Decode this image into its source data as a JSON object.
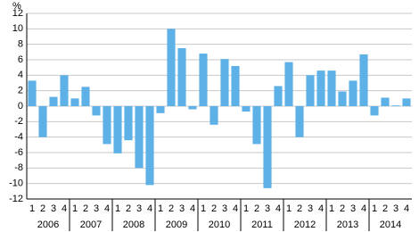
{
  "chart_data": {
    "type": "bar",
    "y_label": "%",
    "categories": [
      "1",
      "2",
      "3",
      "4",
      "1",
      "2",
      "3",
      "4",
      "1",
      "2",
      "3",
      "4",
      "1",
      "2",
      "3",
      "4",
      "1",
      "2",
      "3",
      "4",
      "1",
      "2",
      "3",
      "4",
      "1",
      "2",
      "3",
      "4",
      "1",
      "2",
      "3",
      "4",
      "1",
      "2",
      "3",
      "4"
    ],
    "groups": [
      "2006",
      "2007",
      "2008",
      "2009",
      "2010",
      "2011",
      "2012",
      "2013",
      "2014"
    ],
    "values": [
      3.3,
      -4.0,
      1.2,
      4.0,
      1.0,
      2.5,
      -1.2,
      -4.9,
      -6.1,
      -4.4,
      -8.0,
      -10.2,
      -0.9,
      10.0,
      7.5,
      -0.4,
      6.8,
      -2.4,
      6.1,
      5.2,
      -0.7,
      -4.9,
      -10.6,
      2.6,
      5.7,
      -4.0,
      4.0,
      4.6,
      4.6,
      1.9,
      3.3,
      6.7,
      -1.2,
      1.1,
      0.1,
      1.0
    ],
    "color": "#5eb1e6",
    "ylim": [
      -12,
      12
    ],
    "yticks": [
      -12,
      -10,
      -8,
      -6,
      -4,
      -2,
      0,
      2,
      4,
      6,
      8,
      10,
      12
    ],
    "grid": true
  }
}
